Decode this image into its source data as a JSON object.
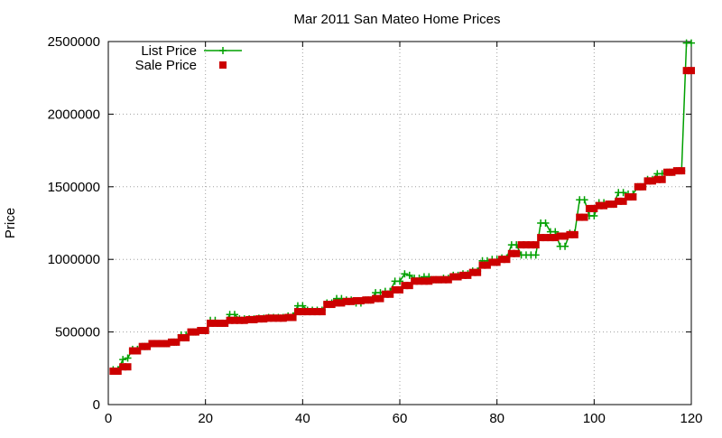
{
  "chart_data": {
    "type": "line",
    "title": "Mar 2011 San Mateo Home Prices",
    "xlabel": "",
    "ylabel": "Price",
    "xlim": [
      0,
      120
    ],
    "ylim": [
      0,
      2500000
    ],
    "x_ticks": [
      "0",
      "20",
      "40",
      "60",
      "80",
      "100",
      "120"
    ],
    "y_ticks": [
      "0",
      "500000",
      "1000000",
      "1500000",
      "2000000",
      "2500000"
    ],
    "grid": true,
    "legend": "top-left",
    "colors": {
      "list": "#00a000",
      "sale": "#cc0000",
      "grid": "#a0a0a0"
    },
    "series": [
      {
        "name": "List Price",
        "style": "line-plus",
        "x": [
          1,
          2,
          3,
          4,
          5,
          6,
          7,
          8,
          9,
          10,
          11,
          12,
          13,
          14,
          15,
          16,
          17,
          18,
          19,
          20,
          21,
          22,
          23,
          24,
          25,
          26,
          27,
          28,
          29,
          30,
          31,
          32,
          33,
          34,
          35,
          36,
          37,
          38,
          39,
          40,
          41,
          42,
          43,
          44,
          45,
          46,
          47,
          48,
          49,
          50,
          51,
          52,
          53,
          54,
          55,
          56,
          57,
          58,
          59,
          60,
          61,
          62,
          63,
          64,
          65,
          66,
          67,
          68,
          69,
          70,
          71,
          72,
          73,
          74,
          75,
          76,
          77,
          78,
          79,
          80,
          81,
          82,
          83,
          84,
          85,
          86,
          87,
          88,
          89,
          90,
          91,
          92,
          93,
          94,
          95,
          96,
          97,
          98,
          99,
          100,
          101,
          102,
          103,
          104,
          105,
          106,
          107,
          108,
          109,
          110,
          111,
          112,
          113,
          114,
          115,
          116,
          117,
          118,
          119,
          120
        ],
        "values": [
          240000,
          240000,
          310000,
          320000,
          380000,
          380000,
          400000,
          400000,
          420000,
          420000,
          420000,
          420000,
          430000,
          430000,
          480000,
          480000,
          500000,
          500000,
          510000,
          510000,
          580000,
          580000,
          560000,
          560000,
          620000,
          620000,
          590000,
          590000,
          590000,
          590000,
          595000,
          595000,
          600000,
          600000,
          600000,
          600000,
          610000,
          610000,
          680000,
          680000,
          650000,
          650000,
          650000,
          650000,
          700000,
          700000,
          730000,
          730000,
          720000,
          720000,
          700000,
          700000,
          720000,
          720000,
          770000,
          770000,
          780000,
          780000,
          850000,
          850000,
          900000,
          890000,
          870000,
          870000,
          880000,
          880000,
          860000,
          860000,
          870000,
          870000,
          890000,
          890000,
          900000,
          900000,
          920000,
          920000,
          990000,
          990000,
          1000000,
          1000000,
          1010000,
          1010000,
          1100000,
          1100000,
          1030000,
          1030000,
          1030000,
          1030000,
          1250000,
          1250000,
          1190000,
          1190000,
          1090000,
          1090000,
          1180000,
          1180000,
          1410000,
          1410000,
          1300000,
          1300000,
          1390000,
          1390000,
          1380000,
          1380000,
          1460000,
          1460000,
          1450000,
          1450000,
          1500000,
          1500000,
          1550000,
          1550000,
          1590000,
          1590000,
          1600000,
          1600000,
          1610000,
          1610000,
          2490000,
          2490000
        ]
      },
      {
        "name": "Sale Price",
        "style": "square-points",
        "x": [
          1,
          2,
          3,
          4,
          5,
          6,
          7,
          8,
          9,
          10,
          11,
          12,
          13,
          14,
          15,
          16,
          17,
          18,
          19,
          20,
          21,
          22,
          23,
          24,
          25,
          26,
          27,
          28,
          29,
          30,
          31,
          32,
          33,
          34,
          35,
          36,
          37,
          38,
          39,
          40,
          41,
          42,
          43,
          44,
          45,
          46,
          47,
          48,
          49,
          50,
          51,
          52,
          53,
          54,
          55,
          56,
          57,
          58,
          59,
          60,
          61,
          62,
          63,
          64,
          65,
          66,
          67,
          68,
          69,
          70,
          71,
          72,
          73,
          74,
          75,
          76,
          77,
          78,
          79,
          80,
          81,
          82,
          83,
          84,
          85,
          86,
          87,
          88,
          89,
          90,
          91,
          92,
          93,
          94,
          95,
          96,
          97,
          98,
          99,
          100,
          101,
          102,
          103,
          104,
          105,
          106,
          107,
          108,
          109,
          110,
          111,
          112,
          113,
          114,
          115,
          116,
          117,
          118,
          119,
          120
        ],
        "values": [
          230000,
          230000,
          260000,
          260000,
          370000,
          370000,
          400000,
          400000,
          420000,
          420000,
          420000,
          420000,
          430000,
          430000,
          460000,
          460000,
          500000,
          500000,
          510000,
          510000,
          560000,
          560000,
          560000,
          560000,
          580000,
          580000,
          580000,
          580000,
          585000,
          585000,
          590000,
          590000,
          595000,
          595000,
          595000,
          595000,
          600000,
          600000,
          640000,
          640000,
          640000,
          640000,
          640000,
          640000,
          690000,
          690000,
          700000,
          700000,
          710000,
          710000,
          715000,
          715000,
          720000,
          720000,
          730000,
          730000,
          760000,
          760000,
          790000,
          790000,
          820000,
          820000,
          850000,
          850000,
          850000,
          850000,
          860000,
          860000,
          860000,
          860000,
          880000,
          880000,
          890000,
          890000,
          910000,
          910000,
          960000,
          960000,
          980000,
          980000,
          1000000,
          1000000,
          1040000,
          1040000,
          1100000,
          1100000,
          1100000,
          1100000,
          1150000,
          1150000,
          1150000,
          1150000,
          1160000,
          1160000,
          1170000,
          1170000,
          1290000,
          1290000,
          1350000,
          1350000,
          1370000,
          1370000,
          1380000,
          1380000,
          1400000,
          1400000,
          1430000,
          1430000,
          1500000,
          1500000,
          1540000,
          1540000,
          1550000,
          1550000,
          1600000,
          1600000,
          1610000,
          1610000,
          2300000,
          2300000
        ]
      }
    ]
  }
}
